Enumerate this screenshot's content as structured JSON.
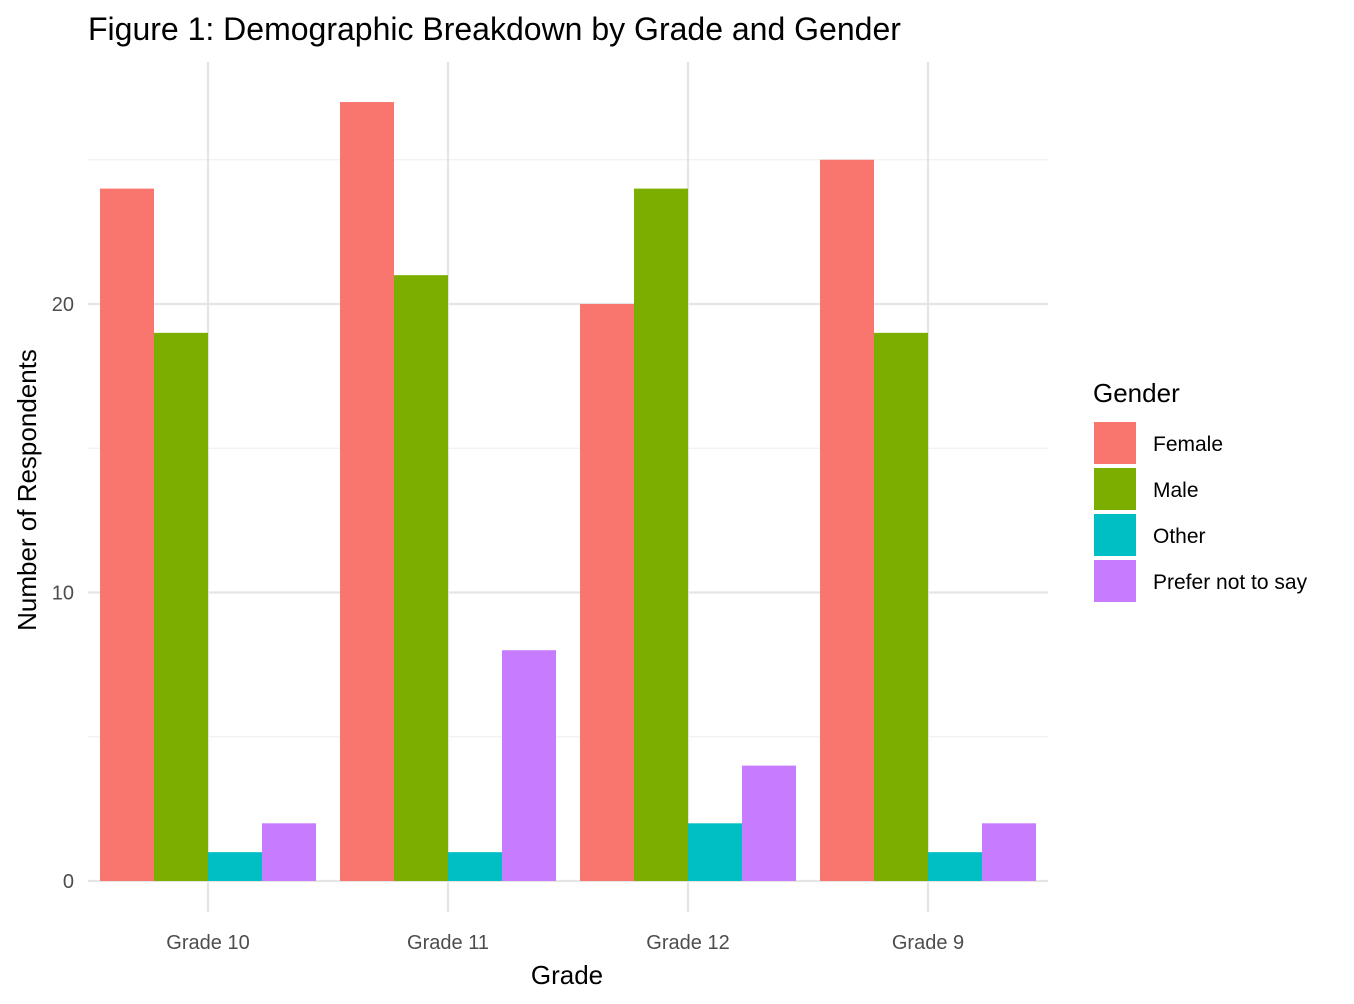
{
  "chart_data": {
    "type": "bar",
    "title": "Figure 1: Demographic Breakdown by Grade and Gender",
    "xlabel": "Grade",
    "ylabel": "Number of Respondents",
    "categories": [
      "Grade 10",
      "Grade 11",
      "Grade 12",
      "Grade 9"
    ],
    "series": [
      {
        "name": "Female",
        "color": "#F8766D",
        "values": [
          24,
          27,
          20,
          25
        ]
      },
      {
        "name": "Male",
        "color": "#7CAE00",
        "values": [
          19,
          21,
          24,
          19
        ]
      },
      {
        "name": "Other",
        "color": "#00BFC4",
        "values": [
          1,
          1,
          2,
          1
        ]
      },
      {
        "name": "Prefer not to say",
        "color": "#C77CFF",
        "values": [
          2,
          8,
          4,
          2
        ]
      }
    ],
    "ylim": [
      0,
      28.35
    ],
    "yticks": [
      0,
      10,
      20
    ],
    "grid": true,
    "legend": {
      "title": "Gender",
      "placement": "right"
    }
  }
}
